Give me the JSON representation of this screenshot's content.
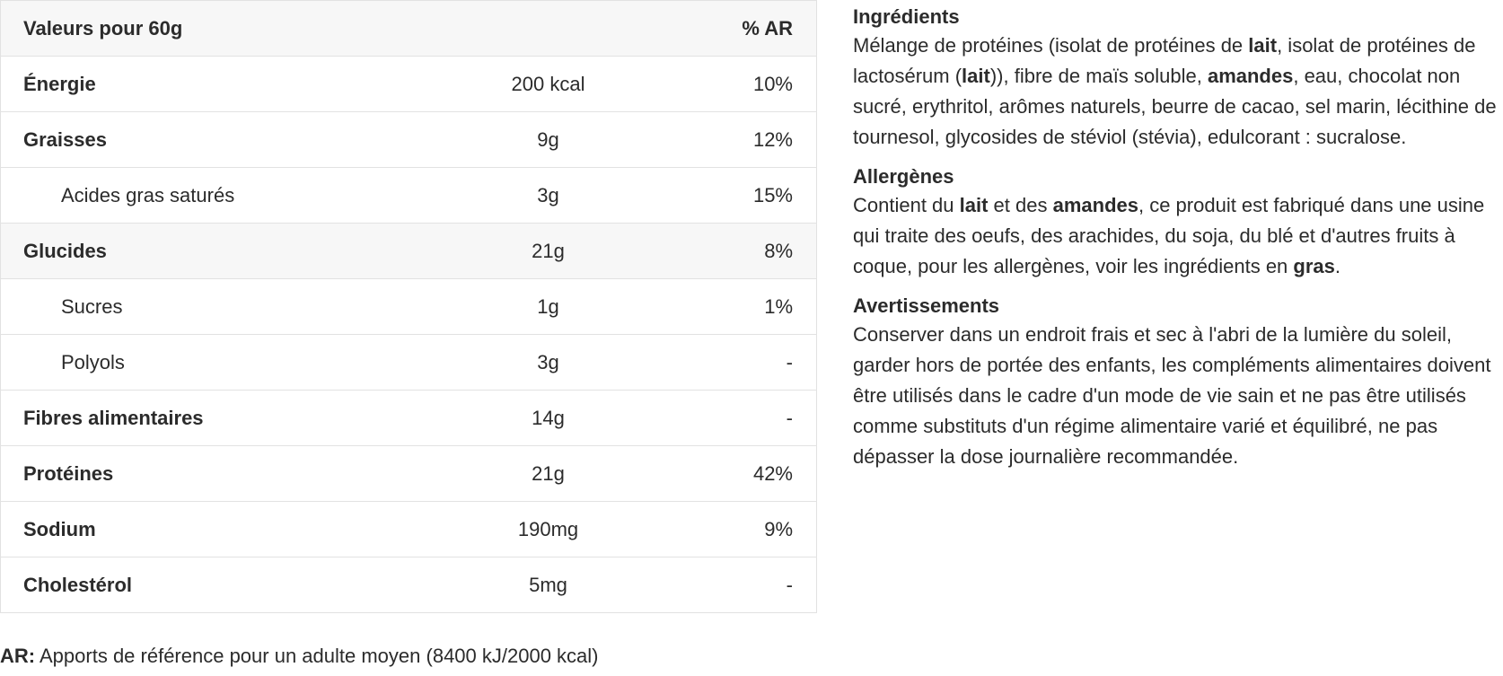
{
  "table": {
    "header": {
      "label": "Valeurs pour 60g",
      "value": "",
      "ar": "% AR"
    },
    "rows": [
      {
        "name": "Énergie",
        "value": "200 kcal",
        "ar": "10%"
      },
      {
        "name": "Graisses",
        "value": "9g",
        "ar": "12%"
      },
      {
        "name": "Acides gras saturés",
        "value": "3g",
        "ar": "15%"
      },
      {
        "name": "Glucides",
        "value": "21g",
        "ar": "8%"
      },
      {
        "name": "Sucres",
        "value": "1g",
        "ar": "1%"
      },
      {
        "name": "Polyols",
        "value": "3g",
        "ar": "-"
      },
      {
        "name": "Fibres alimentaires",
        "value": "14g",
        "ar": "-"
      },
      {
        "name": "Protéines",
        "value": "21g",
        "ar": "42%"
      },
      {
        "name": "Sodium",
        "value": "190mg",
        "ar": "9%"
      },
      {
        "name": "Cholestérol",
        "value": "5mg",
        "ar": "-"
      }
    ]
  },
  "footnote": {
    "label": "AR:",
    "text": " Apports de référence pour un adulte moyen (8400 kJ/2000 kcal)"
  },
  "ingredients": {
    "title": "Ingrédients",
    "t1": "Mélange de protéines (isolat de protéines de ",
    "b1": "lait",
    "t2": ", isolat de protéines de lactosérum (",
    "b2": "lait",
    "t3": ")), fibre de maïs soluble, ",
    "b3": "amandes",
    "t4": ", eau, chocolat non sucré, erythritol, arômes naturels, beurre de cacao, sel marin, lécithine de tournesol, glycosides de stéviol (stévia), edulcorant : sucralose."
  },
  "allergens": {
    "title": "Allergènes",
    "t1": "Contient du ",
    "b1": "lait",
    "t2": " et des ",
    "b2": "amandes",
    "t3": ", ce produit est fabriqué dans une usine qui traite des oeufs, des arachides, du soja, du blé et d'autres fruits à coque, pour les allergènes, voir les ingrédients en ",
    "b3": "gras",
    "t4": "."
  },
  "warnings": {
    "title": "Avertissements",
    "text": "Conserver dans un endroit frais et sec à l'abri de la lumière du soleil, garder hors de portée des enfants, les compléments alimentaires doivent être utilisés dans le cadre d'un mode de vie sain et ne pas être utilisés comme substituts d'un régime alimentaire varié et équilibré, ne pas dépasser la dose journalière recommandée."
  }
}
